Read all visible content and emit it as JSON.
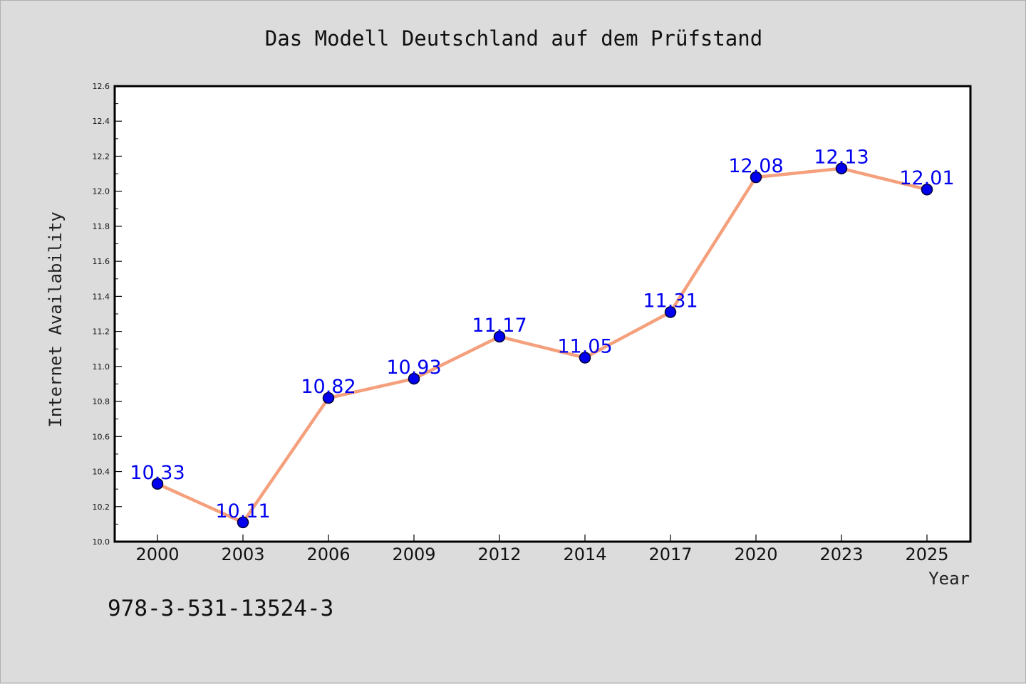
{
  "chart_data": {
    "type": "line",
    "title": "Das Modell Deutschland auf dem Prüfstand",
    "xlabel": "Year",
    "ylabel": "Internet Availability",
    "categories": [
      "2000",
      "2003",
      "2006",
      "2009",
      "2012",
      "2014",
      "2017",
      "2020",
      "2023",
      "2025"
    ],
    "series": [
      {
        "values": [
          10.33,
          10.11,
          10.82,
          10.93,
          11.17,
          11.05,
          11.31,
          12.08,
          12.13,
          12.01
        ],
        "data_labels": [
          "10.33",
          "10.11",
          "10.82",
          "10.93",
          "11.17",
          "11.05",
          "11.31",
          "12.08",
          "12.13",
          "12.01"
        ],
        "line_color": "#f5a07c",
        "marker_color": "#0000ee",
        "label_color": "#0000ee"
      }
    ],
    "ylim": [
      10.0,
      12.6
    ],
    "yticks": [
      "10.0",
      "10.2",
      "10.4",
      "10.6",
      "10.8",
      "11.0",
      "11.2",
      "11.4",
      "11.6",
      "11.8",
      "12.0",
      "12.2",
      "12.4",
      "12.6"
    ],
    "grid": false,
    "legend": "none"
  },
  "footer": {
    "isbn": "978-3-531-13524-3"
  },
  "colors": {
    "figure_background": "#dcdcdc",
    "plot_background": "#ffffff",
    "axes_frame": "#000000"
  }
}
